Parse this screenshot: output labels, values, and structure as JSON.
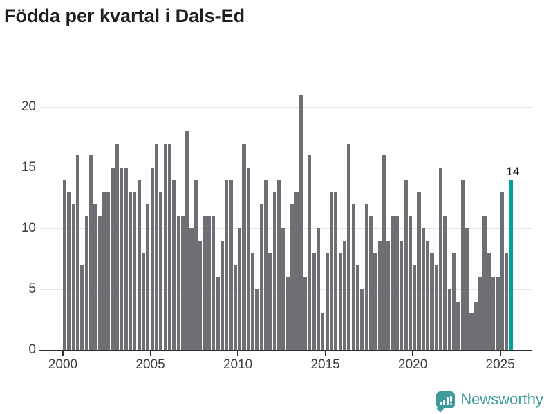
{
  "title": "Födda per kvartal i Dals-Ed",
  "annotation": {
    "label": "14"
  },
  "y_axis": {
    "ticks": [
      0,
      5,
      10,
      15,
      20
    ]
  },
  "x_axis": {
    "ticks": [
      2000,
      2005,
      2010,
      2015,
      2020,
      2025
    ]
  },
  "footer": {
    "brand": "Newsworthy"
  },
  "colors": {
    "bar": "#6e6e75",
    "highlight": "#00a39b",
    "grid": "#e4e4e4",
    "axis": "#2e2e2e",
    "tick_text": "#3d3d3d",
    "title_text": "#1f1f1f",
    "logo": "#3f9b9c"
  },
  "chart_data": {
    "type": "bar",
    "title": "Födda per kvartal i Dals-Ed",
    "xlabel": "",
    "ylabel": "",
    "ylim": [
      0,
      21
    ],
    "grid": "horizontal",
    "x_start": "2000-Q1",
    "x_end": "2025-Q3",
    "frequency": "quarterly",
    "highlight_last": true,
    "highlight_label": "14",
    "values": [
      14,
      13,
      12,
      16,
      7,
      11,
      16,
      12,
      11,
      13,
      13,
      15,
      17,
      15,
      15,
      13,
      13,
      14,
      8,
      12,
      15,
      17,
      13,
      17,
      17,
      14,
      11,
      11,
      18,
      10,
      14,
      9,
      11,
      11,
      11,
      6,
      9,
      14,
      14,
      7,
      10,
      17,
      15,
      8,
      5,
      12,
      14,
      8,
      13,
      14,
      10,
      6,
      12,
      13,
      21,
      6,
      16,
      8,
      10,
      3,
      8,
      13,
      13,
      8,
      9,
      17,
      12,
      7,
      5,
      12,
      11,
      8,
      9,
      16,
      9,
      11,
      11,
      9,
      14,
      11,
      7,
      13,
      10,
      9,
      8,
      7,
      15,
      11,
      5,
      8,
      4,
      14,
      10,
      3,
      4,
      6,
      11,
      8,
      6,
      6,
      13,
      8,
      14
    ]
  }
}
